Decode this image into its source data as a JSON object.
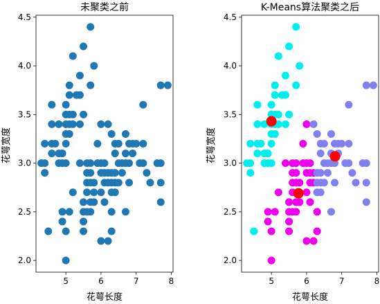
{
  "chart_data": [
    {
      "type": "scatter",
      "title": "未聚类之前",
      "xlabel": "花萼长度",
      "ylabel": "花萼宽度",
      "xlim": [
        4.15,
        8.05
      ],
      "ylim": [
        1.88,
        4.52
      ],
      "xticks": [
        "5",
        "6",
        "7",
        "8"
      ],
      "yticks": [
        "2.0",
        "2.5",
        "3.0",
        "3.5",
        "4.0",
        "4.5"
      ],
      "series": [
        {
          "color": "#1f77b4",
          "points": [
            [
              4.3,
              3.0
            ],
            [
              4.4,
              2.9
            ],
            [
              4.4,
              3.0
            ],
            [
              4.4,
              3.2
            ],
            [
              4.5,
              2.3
            ],
            [
              4.6,
              3.1
            ],
            [
              4.6,
              3.2
            ],
            [
              4.6,
              3.4
            ],
            [
              4.6,
              3.6
            ],
            [
              4.7,
              3.2
            ],
            [
              4.8,
              3.0
            ],
            [
              4.8,
              3.1
            ],
            [
              4.8,
              3.4
            ],
            [
              4.9,
              2.4
            ],
            [
              4.9,
              2.5
            ],
            [
              4.9,
              3.0
            ],
            [
              4.9,
              3.1
            ],
            [
              5.0,
              2.0
            ],
            [
              5.0,
              2.3
            ],
            [
              5.0,
              3.0
            ],
            [
              5.0,
              3.2
            ],
            [
              5.0,
              3.3
            ],
            [
              5.0,
              3.4
            ],
            [
              5.0,
              3.5
            ],
            [
              5.0,
              3.6
            ],
            [
              5.1,
              2.5
            ],
            [
              5.1,
              3.3
            ],
            [
              5.1,
              3.4
            ],
            [
              5.1,
              3.5
            ],
            [
              5.1,
              3.7
            ],
            [
              5.1,
              3.8
            ],
            [
              5.2,
              2.7
            ],
            [
              5.2,
              3.4
            ],
            [
              5.2,
              3.5
            ],
            [
              5.2,
              4.1
            ],
            [
              5.3,
              3.7
            ],
            [
              5.4,
              3.0
            ],
            [
              5.4,
              3.4
            ],
            [
              5.4,
              3.7
            ],
            [
              5.4,
              3.9
            ],
            [
              5.5,
              2.3
            ],
            [
              5.5,
              2.4
            ],
            [
              5.5,
              2.5
            ],
            [
              5.5,
              2.6
            ],
            [
              5.5,
              3.5
            ],
            [
              5.5,
              4.2
            ],
            [
              5.6,
              2.5
            ],
            [
              5.6,
              2.7
            ],
            [
              5.6,
              2.8
            ],
            [
              5.6,
              2.9
            ],
            [
              5.6,
              3.0
            ],
            [
              5.7,
              2.5
            ],
            [
              5.7,
              2.6
            ],
            [
              5.7,
              2.8
            ],
            [
              5.7,
              2.9
            ],
            [
              5.7,
              3.0
            ],
            [
              5.7,
              3.8
            ],
            [
              5.7,
              4.4
            ],
            [
              5.8,
              2.6
            ],
            [
              5.8,
              2.7
            ],
            [
              5.8,
              2.8
            ],
            [
              5.8,
              4.0
            ],
            [
              5.9,
              3.0
            ],
            [
              5.9,
              3.2
            ],
            [
              6.0,
              2.2
            ],
            [
              6.0,
              2.7
            ],
            [
              6.0,
              2.9
            ],
            [
              6.0,
              3.0
            ],
            [
              6.0,
              3.4
            ],
            [
              6.1,
              2.6
            ],
            [
              6.1,
              2.8
            ],
            [
              6.1,
              2.9
            ],
            [
              6.1,
              3.0
            ],
            [
              6.2,
              2.2
            ],
            [
              6.2,
              2.8
            ],
            [
              6.2,
              2.9
            ],
            [
              6.2,
              3.4
            ],
            [
              6.3,
              2.3
            ],
            [
              6.3,
              2.5
            ],
            [
              6.3,
              2.7
            ],
            [
              6.3,
              2.8
            ],
            [
              6.3,
              2.9
            ],
            [
              6.3,
              3.3
            ],
            [
              6.4,
              2.7
            ],
            [
              6.4,
              2.8
            ],
            [
              6.4,
              2.9
            ],
            [
              6.4,
              3.1
            ],
            [
              6.4,
              3.2
            ],
            [
              6.5,
              2.8
            ],
            [
              6.5,
              3.0
            ],
            [
              6.5,
              3.2
            ],
            [
              6.6,
              2.9
            ],
            [
              6.6,
              3.0
            ],
            [
              6.7,
              2.5
            ],
            [
              6.7,
              3.0
            ],
            [
              6.7,
              3.1
            ],
            [
              6.7,
              3.3
            ],
            [
              6.8,
              2.8
            ],
            [
              6.8,
              3.0
            ],
            [
              6.8,
              3.2
            ],
            [
              6.9,
              3.1
            ],
            [
              6.9,
              3.2
            ],
            [
              7.0,
              3.2
            ],
            [
              7.1,
              3.0
            ],
            [
              7.2,
              3.0
            ],
            [
              7.2,
              3.2
            ],
            [
              7.2,
              3.6
            ],
            [
              7.3,
              2.9
            ],
            [
              7.4,
              2.8
            ],
            [
              7.6,
              3.0
            ],
            [
              7.7,
              2.6
            ],
            [
              7.7,
              2.8
            ],
            [
              7.7,
              3.0
            ],
            [
              7.7,
              3.8
            ],
            [
              7.9,
              3.8
            ]
          ]
        }
      ]
    },
    {
      "type": "scatter",
      "title": "K-Means算法聚类之后",
      "xlabel": "花萼长度",
      "ylabel": "花萼宽度",
      "xlim": [
        4.15,
        8.05
      ],
      "ylim": [
        1.88,
        4.52
      ],
      "xticks": [
        "5",
        "6",
        "7",
        "8"
      ],
      "yticks": [
        "2.0",
        "2.5",
        "3.0",
        "3.5",
        "4.0",
        "4.5"
      ],
      "series": [
        {
          "color": "#00eeee",
          "points": [
            [
              4.3,
              3.0
            ],
            [
              4.4,
              2.9
            ],
            [
              4.4,
              3.0
            ],
            [
              4.4,
              3.2
            ],
            [
              4.5,
              2.3
            ],
            [
              4.6,
              3.1
            ],
            [
              4.6,
              3.2
            ],
            [
              4.6,
              3.4
            ],
            [
              4.6,
              3.6
            ],
            [
              4.7,
              3.2
            ],
            [
              4.8,
              3.0
            ],
            [
              4.8,
              3.1
            ],
            [
              4.8,
              3.4
            ],
            [
              4.9,
              3.0
            ],
            [
              4.9,
              3.1
            ],
            [
              5.0,
              3.0
            ],
            [
              5.0,
              3.2
            ],
            [
              5.0,
              3.3
            ],
            [
              5.0,
              3.4
            ],
            [
              5.0,
              3.5
            ],
            [
              5.0,
              3.6
            ],
            [
              5.1,
              3.3
            ],
            [
              5.1,
              3.4
            ],
            [
              5.1,
              3.5
            ],
            [
              5.1,
              3.7
            ],
            [
              5.1,
              3.8
            ],
            [
              5.2,
              3.4
            ],
            [
              5.2,
              3.5
            ],
            [
              5.2,
              4.1
            ],
            [
              5.3,
              3.7
            ],
            [
              5.4,
              3.4
            ],
            [
              5.4,
              3.7
            ],
            [
              5.4,
              3.9
            ],
            [
              5.5,
              3.5
            ],
            [
              5.5,
              4.2
            ],
            [
              5.7,
              3.8
            ],
            [
              5.7,
              4.4
            ],
            [
              5.8,
              4.0
            ]
          ]
        },
        {
          "color": "#ee00ee",
          "points": [
            [
              4.9,
              2.4
            ],
            [
              4.9,
              2.5
            ],
            [
              5.0,
              2.0
            ],
            [
              5.0,
              2.3
            ],
            [
              5.1,
              2.5
            ],
            [
              5.2,
              2.7
            ],
            [
              5.4,
              3.0
            ],
            [
              5.5,
              2.3
            ],
            [
              5.5,
              2.4
            ],
            [
              5.5,
              2.5
            ],
            [
              5.5,
              2.6
            ],
            [
              5.6,
              2.5
            ],
            [
              5.6,
              2.7
            ],
            [
              5.6,
              2.8
            ],
            [
              5.6,
              2.9
            ],
            [
              5.6,
              3.0
            ],
            [
              5.7,
              2.5
            ],
            [
              5.7,
              2.6
            ],
            [
              5.7,
              2.8
            ],
            [
              5.7,
              2.9
            ],
            [
              5.7,
              3.0
            ],
            [
              5.8,
              2.6
            ],
            [
              5.8,
              2.7
            ],
            [
              5.8,
              2.8
            ],
            [
              5.9,
              3.0
            ],
            [
              5.9,
              3.2
            ],
            [
              6.0,
              2.2
            ],
            [
              6.0,
              2.7
            ],
            [
              6.0,
              2.9
            ],
            [
              6.0,
              3.0
            ],
            [
              6.0,
              3.4
            ],
            [
              6.1,
              2.6
            ],
            [
              6.1,
              2.8
            ],
            [
              6.1,
              2.9
            ],
            [
              6.1,
              3.0
            ],
            [
              6.2,
              2.2
            ],
            [
              6.2,
              2.8
            ],
            [
              6.2,
              2.9
            ],
            [
              6.3,
              2.3
            ],
            [
              6.3,
              2.5
            ]
          ]
        },
        {
          "color": "#8080ee",
          "points": [
            [
              6.2,
              3.4
            ],
            [
              6.3,
              2.7
            ],
            [
              6.3,
              2.8
            ],
            [
              6.3,
              2.9
            ],
            [
              6.3,
              3.3
            ],
            [
              6.4,
              2.7
            ],
            [
              6.4,
              2.8
            ],
            [
              6.4,
              2.9
            ],
            [
              6.4,
              3.1
            ],
            [
              6.4,
              3.2
            ],
            [
              6.5,
              2.8
            ],
            [
              6.5,
              3.0
            ],
            [
              6.5,
              3.2
            ],
            [
              6.6,
              2.9
            ],
            [
              6.6,
              3.0
            ],
            [
              6.7,
              2.5
            ],
            [
              6.7,
              3.0
            ],
            [
              6.7,
              3.1
            ],
            [
              6.7,
              3.3
            ],
            [
              6.8,
              2.8
            ],
            [
              6.8,
              3.0
            ],
            [
              6.8,
              3.2
            ],
            [
              6.9,
              3.1
            ],
            [
              6.9,
              3.2
            ],
            [
              7.0,
              3.2
            ],
            [
              7.1,
              3.0
            ],
            [
              7.2,
              3.0
            ],
            [
              7.2,
              3.2
            ],
            [
              7.2,
              3.6
            ],
            [
              7.3,
              2.9
            ],
            [
              7.4,
              2.8
            ],
            [
              7.6,
              3.0
            ],
            [
              7.7,
              2.6
            ],
            [
              7.7,
              2.8
            ],
            [
              7.7,
              3.0
            ],
            [
              7.7,
              3.8
            ],
            [
              7.9,
              3.8
            ]
          ]
        }
      ],
      "centroids": {
        "color": "#ff0000",
        "points": [
          [
            5.0,
            3.43
          ],
          [
            5.77,
            2.69
          ],
          [
            6.81,
            3.07
          ]
        ]
      }
    }
  ]
}
